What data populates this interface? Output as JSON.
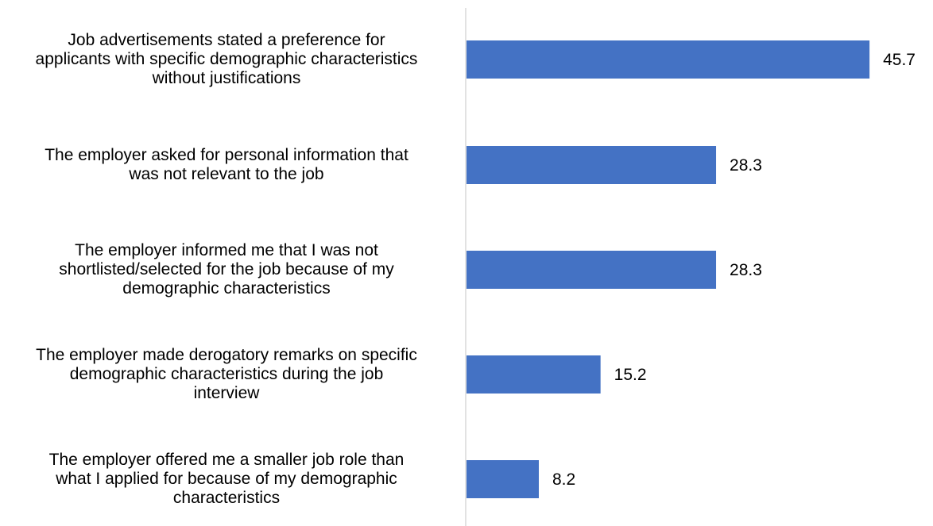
{
  "chart_data": {
    "type": "bar",
    "orientation": "horizontal",
    "categories": [
      "Job advertisements stated a preference for applicants with specific demographic characteristics without justifications",
      "The employer asked for personal information that was not relevant to the job",
      "The employer informed me that I was not shortlisted/selected for the job because of my demographic characteristics",
      "The employer made derogatory remarks on specific demographic characteristics during the job interview",
      "The employer offered me a smaller job role than what I applied for because of my demographic characteristics"
    ],
    "category_lines": [
      [
        "Job advertisements stated a preference for",
        "applicants with specific demographic characteristics",
        "without justifications"
      ],
      [
        "The employer asked for personal information that",
        "was not relevant to the job"
      ],
      [
        "The employer informed me that I was not",
        "shortlisted/selected for the job because of my",
        "demographic characteristics"
      ],
      [
        "The employer made derogatory remarks on specific",
        "demographic characteristics during the job",
        "interview"
      ],
      [
        "The employer offered me a smaller job role than",
        "what I applied for because of my demographic",
        "characteristics"
      ]
    ],
    "values": [
      45.7,
      28.3,
      28.3,
      15.2,
      8.2
    ],
    "value_labels": [
      "45.7",
      "28.3",
      "28.3",
      "15.2",
      "8.2"
    ],
    "xlim": [
      0,
      46.5
    ],
    "bar_color": "#4472C4",
    "axis_color": "#D9D9D9",
    "grid": false,
    "legend": "none",
    "title": "",
    "xlabel": "",
    "ylabel": ""
  }
}
